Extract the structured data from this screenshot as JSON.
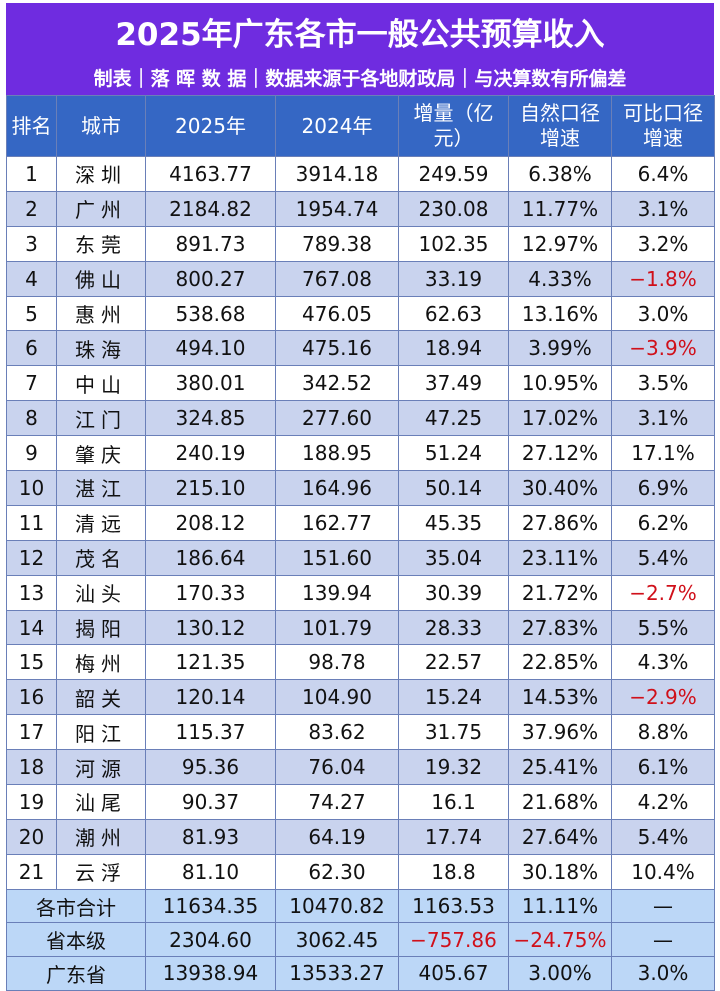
{
  "header": {
    "title": "2025年广东各市一般公共预算收入",
    "subtitle": "制表｜落 晖 数 据｜数据来源于各地财政局｜与决算数有所偏差"
  },
  "table": {
    "columns": [
      "排名",
      "城市",
      "2025年",
      "2024年",
      "增量（亿元）",
      "自然口径增速",
      "可比口径增速"
    ],
    "rows": [
      {
        "rank": "1",
        "city": "深圳",
        "y2025": "4163.77",
        "y2024": "3914.18",
        "delta": "249.59",
        "nat": "6.38%",
        "comp": "6.4%"
      },
      {
        "rank": "2",
        "city": "广州",
        "y2025": "2184.82",
        "y2024": "1954.74",
        "delta": "230.08",
        "nat": "11.77%",
        "comp": "3.1%"
      },
      {
        "rank": "3",
        "city": "东莞",
        "y2025": "891.73",
        "y2024": "789.38",
        "delta": "102.35",
        "nat": "12.97%",
        "comp": "3.2%"
      },
      {
        "rank": "4",
        "city": "佛山",
        "y2025": "800.27",
        "y2024": "767.08",
        "delta": "33.19",
        "nat": "4.33%",
        "comp": "−1.8%"
      },
      {
        "rank": "5",
        "city": "惠州",
        "y2025": "538.68",
        "y2024": "476.05",
        "delta": "62.63",
        "nat": "13.16%",
        "comp": "3.0%"
      },
      {
        "rank": "6",
        "city": "珠海",
        "y2025": "494.10",
        "y2024": "475.16",
        "delta": "18.94",
        "nat": "3.99%",
        "comp": "−3.9%"
      },
      {
        "rank": "7",
        "city": "中山",
        "y2025": "380.01",
        "y2024": "342.52",
        "delta": "37.49",
        "nat": "10.95%",
        "comp": "3.5%"
      },
      {
        "rank": "8",
        "city": "江门",
        "y2025": "324.85",
        "y2024": "277.60",
        "delta": "47.25",
        "nat": "17.02%",
        "comp": "3.1%"
      },
      {
        "rank": "9",
        "city": "肇庆",
        "y2025": "240.19",
        "y2024": "188.95",
        "delta": "51.24",
        "nat": "27.12%",
        "comp": "17.1%"
      },
      {
        "rank": "10",
        "city": "湛江",
        "y2025": "215.10",
        "y2024": "164.96",
        "delta": "50.14",
        "nat": "30.40%",
        "comp": "6.9%"
      },
      {
        "rank": "11",
        "city": "清远",
        "y2025": "208.12",
        "y2024": "162.77",
        "delta": "45.35",
        "nat": "27.86%",
        "comp": "6.2%"
      },
      {
        "rank": "12",
        "city": "茂名",
        "y2025": "186.64",
        "y2024": "151.60",
        "delta": "35.04",
        "nat": "23.11%",
        "comp": "5.4%"
      },
      {
        "rank": "13",
        "city": "汕头",
        "y2025": "170.33",
        "y2024": "139.94",
        "delta": "30.39",
        "nat": "21.72%",
        "comp": "−2.7%"
      },
      {
        "rank": "14",
        "city": "揭阳",
        "y2025": "130.12",
        "y2024": "101.79",
        "delta": "28.33",
        "nat": "27.83%",
        "comp": "5.5%"
      },
      {
        "rank": "15",
        "city": "梅州",
        "y2025": "121.35",
        "y2024": "98.78",
        "delta": "22.57",
        "nat": "22.85%",
        "comp": "4.3%"
      },
      {
        "rank": "16",
        "city": "韶关",
        "y2025": "120.14",
        "y2024": "104.90",
        "delta": "15.24",
        "nat": "14.53%",
        "comp": "−2.9%"
      },
      {
        "rank": "17",
        "city": "阳江",
        "y2025": "115.37",
        "y2024": "83.62",
        "delta": "31.75",
        "nat": "37.96%",
        "comp": "8.8%"
      },
      {
        "rank": "18",
        "city": "河源",
        "y2025": "95.36",
        "y2024": "76.04",
        "delta": "19.32",
        "nat": "25.41%",
        "comp": "6.1%"
      },
      {
        "rank": "19",
        "city": "汕尾",
        "y2025": "90.37",
        "y2024": "74.27",
        "delta": "16.1",
        "nat": "21.68%",
        "comp": "4.2%"
      },
      {
        "rank": "20",
        "city": "潮州",
        "y2025": "81.93",
        "y2024": "64.19",
        "delta": "17.74",
        "nat": "27.64%",
        "comp": "5.4%"
      },
      {
        "rank": "21",
        "city": "云浮",
        "y2025": "81.10",
        "y2024": "62.30",
        "delta": "18.8",
        "nat": "30.18%",
        "comp": "10.4%"
      }
    ],
    "summary": [
      {
        "label": "各市合计",
        "y2025": "11634.35",
        "y2024": "10470.82",
        "delta": "1163.53",
        "nat": "11.11%",
        "comp": "—"
      },
      {
        "label": "省本级",
        "y2025": "2304.60",
        "y2024": "3062.45",
        "delta": "−757.86",
        "nat": "−24.75%",
        "comp": "—"
      },
      {
        "label": "广东省",
        "y2025": "13938.94",
        "y2024": "13533.27",
        "delta": "405.67",
        "nat": "3.00%",
        "comp": "3.0%"
      }
    ]
  },
  "colors": {
    "header_bg": "#6f2ce0",
    "column_header_bg": "#3567c4",
    "row_alt_bg": "#c9d3ee",
    "summary_bg": "#bcd7f7",
    "negative_text": "#d0101a"
  }
}
